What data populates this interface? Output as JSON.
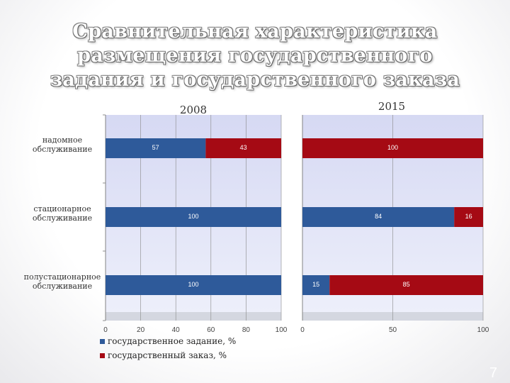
{
  "title": "Сравнительная характеристика размещения государственного задания и государственного заказа",
  "slide_number": "7",
  "colors": {
    "series1": "#2e5a9a",
    "series2": "#a50a14",
    "plot_bg_top": "#d6d9f3",
    "plot_bg_bottom": "#eef0fb"
  },
  "chart_data": [
    {
      "type": "bar",
      "orientation": "horizontal",
      "stacked": true,
      "title": "2008",
      "categories": [
        "надомное обслуживание",
        "стационарное обслуживание",
        "полустационарное обслуживание"
      ],
      "series": [
        {
          "name": "государственное задание, %",
          "values": [
            57,
            100,
            100
          ]
        },
        {
          "name": "государственный заказ, %",
          "values": [
            43,
            0,
            0
          ]
        }
      ],
      "xlim": [
        0,
        100
      ],
      "xticks": [
        0,
        20,
        40,
        60,
        80,
        100
      ],
      "grid": true
    },
    {
      "type": "bar",
      "orientation": "horizontal",
      "stacked": true,
      "title": "2015",
      "categories": [
        "надомное обслуживание",
        "стационарное обслуживание",
        "полустационарное обслуживание"
      ],
      "series": [
        {
          "name": "государственное задание, %",
          "values": [
            0,
            84,
            15
          ]
        },
        {
          "name": "государственный заказ, %",
          "values": [
            100,
            16,
            85
          ]
        }
      ],
      "xlim": [
        0,
        100
      ],
      "xticks": [
        0,
        50,
        100
      ],
      "grid": true
    }
  ],
  "legend": [
    {
      "label": "государственное задание, %"
    },
    {
      "label": "государственный заказ, %"
    }
  ]
}
